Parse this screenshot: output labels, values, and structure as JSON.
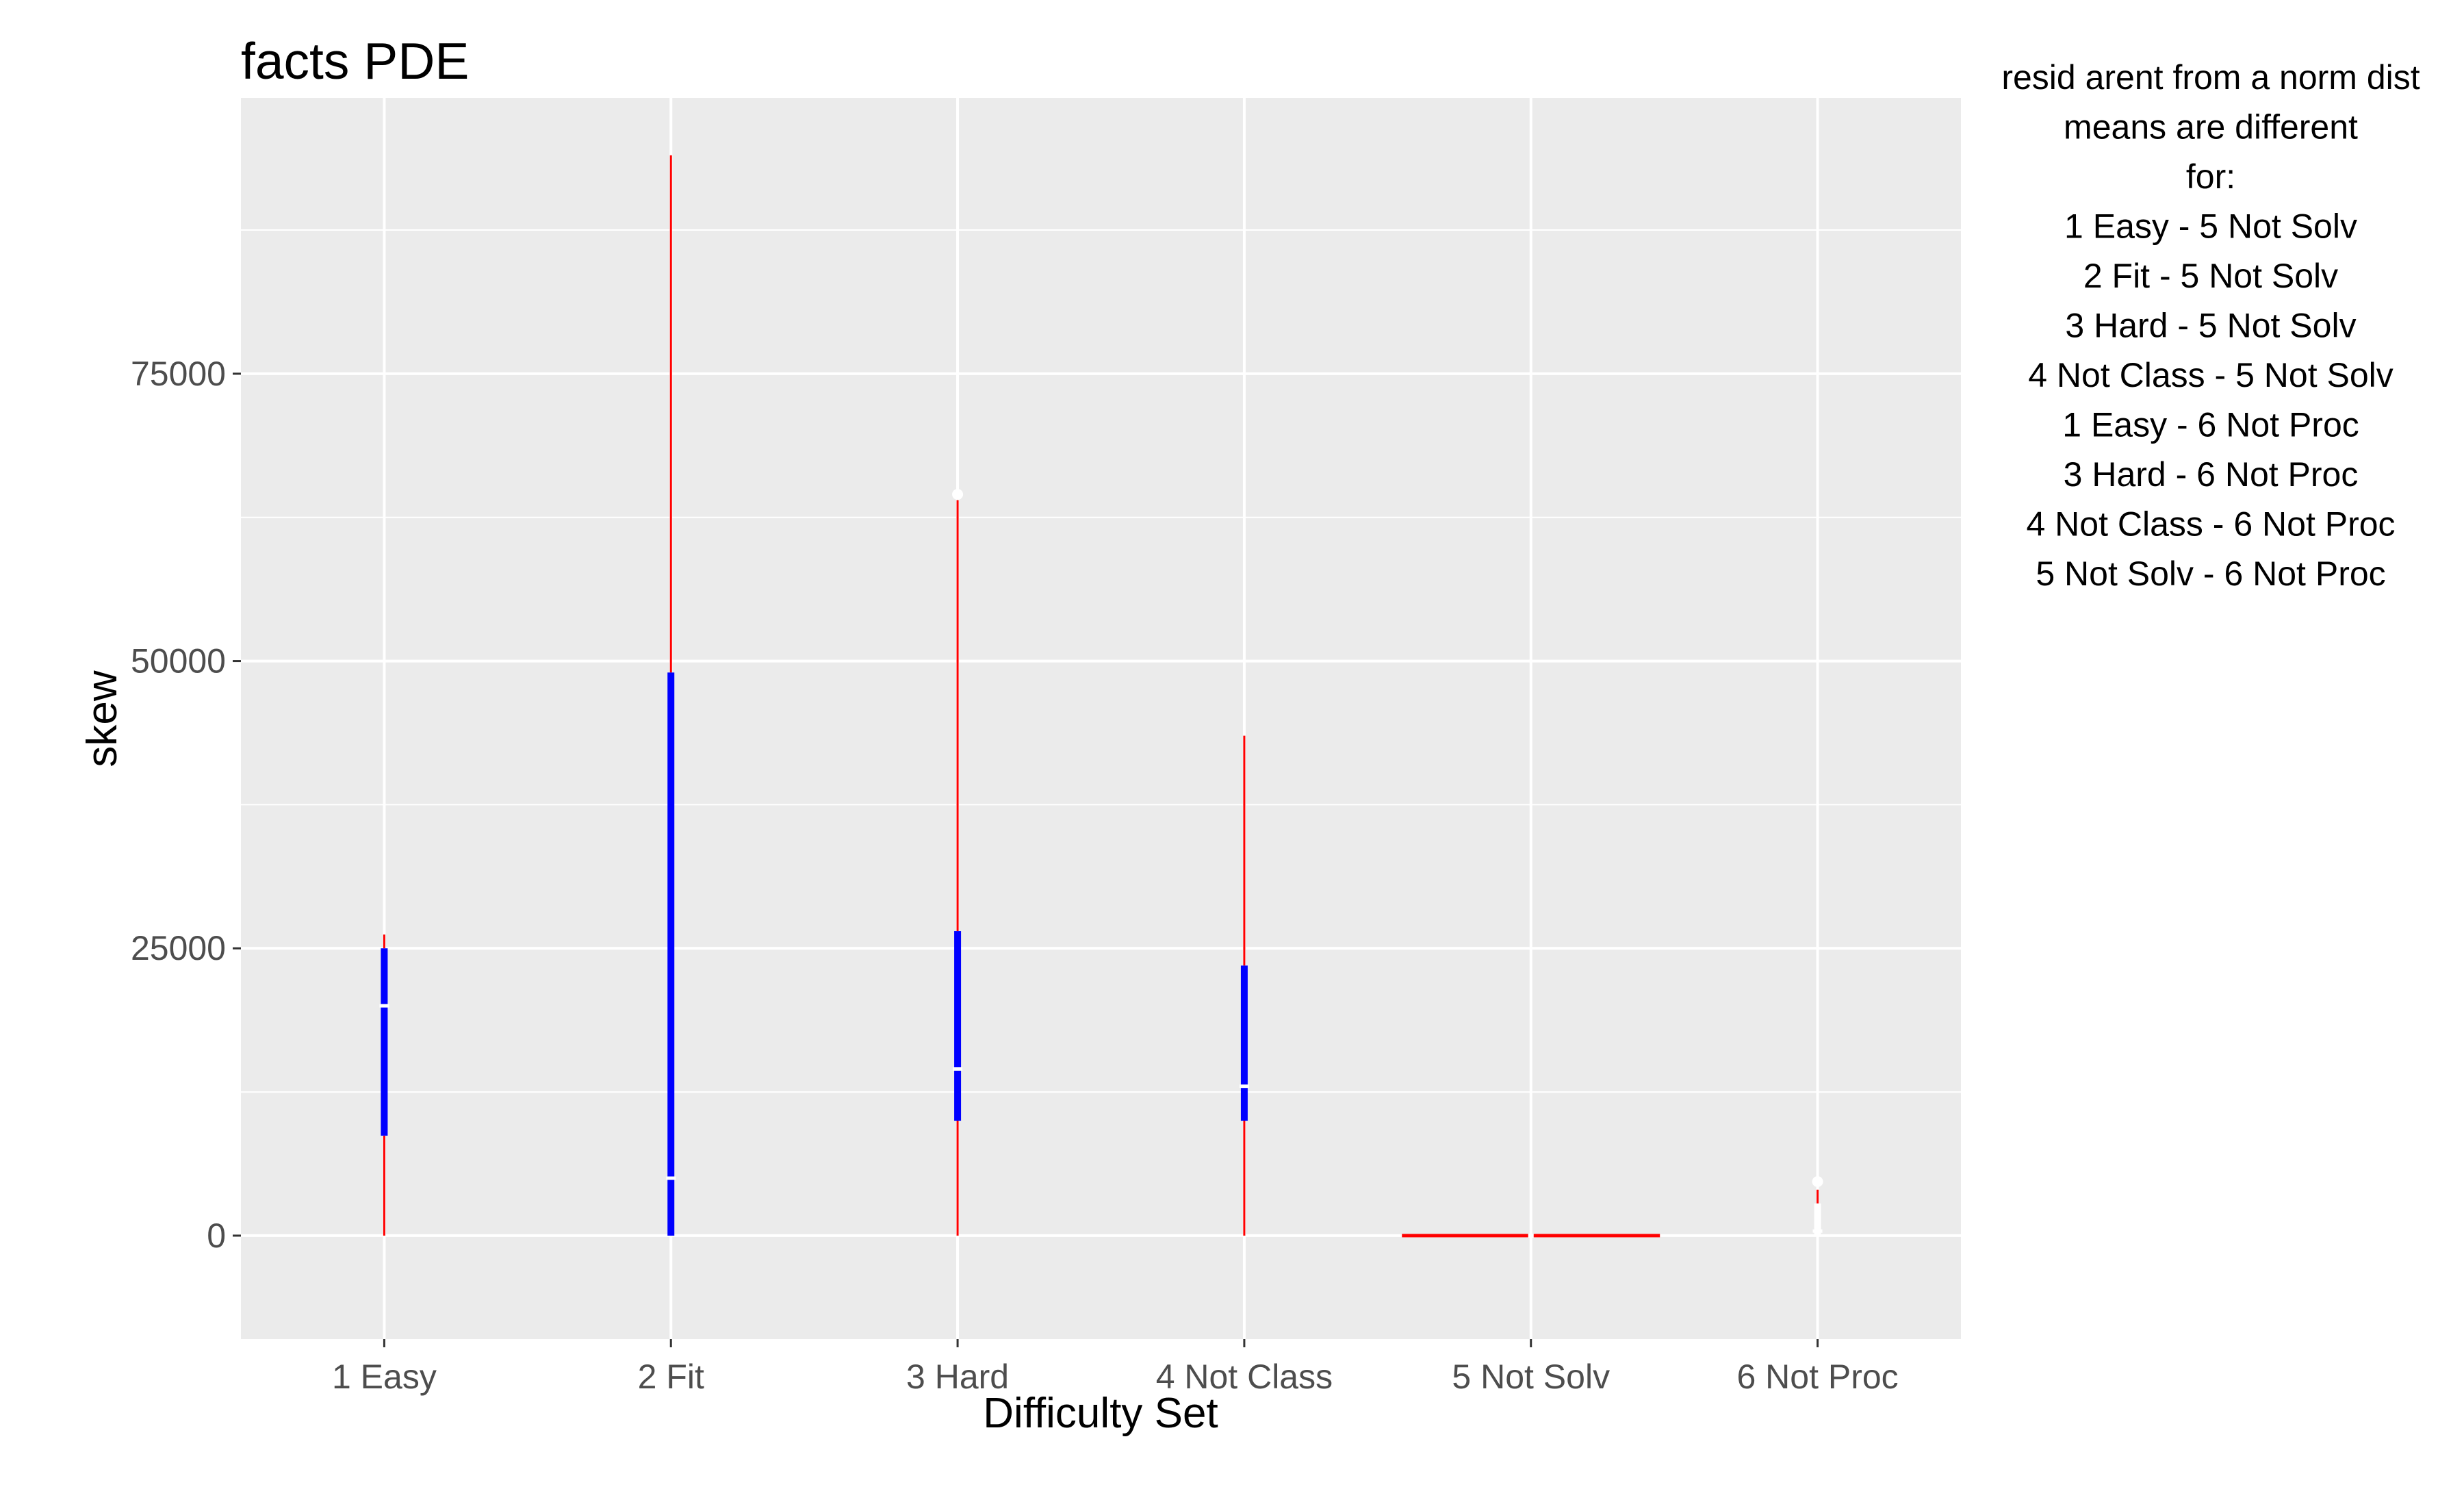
{
  "chart_data": {
    "type": "boxplot",
    "title": "facts PDE",
    "xlabel": "Difficulty Set",
    "ylabel": "skew",
    "ylim": [
      -9000,
      99000
    ],
    "yticks": [
      0,
      25000,
      50000,
      75000
    ],
    "categories": [
      "1 Easy",
      "2 Fit",
      "3 Hard",
      "4 Not Class",
      "5 Not Solv",
      "6 Not Proc"
    ],
    "boxes": [
      {
        "category": "1 Easy",
        "min": 0,
        "q1": 8700,
        "median": 20000,
        "q3": 25000,
        "max": 26200,
        "color": "#0000ff"
      },
      {
        "category": "2 Fit",
        "min": 0,
        "q1": 0,
        "median": 5000,
        "q3": 49000,
        "max": 94000,
        "color": "#0000ff"
      },
      {
        "category": "3 Hard",
        "min": 0,
        "q1": 10000,
        "median": 14500,
        "q3": 26500,
        "max": 64000,
        "color": "#0000ff"
      },
      {
        "category": "4 Not Class",
        "min": 0,
        "q1": 10000,
        "median": 13000,
        "q3": 23500,
        "max": 43500,
        "color": "#0000ff"
      },
      {
        "category": "5 Not Solv",
        "min": 0,
        "q1": 0,
        "median": 0,
        "q3": 0,
        "max": 0,
        "color": "#ff0000"
      },
      {
        "category": "6 Not Proc",
        "min": 0,
        "q1": 0,
        "median": 400,
        "q3": 2800,
        "max": 4000,
        "color": "#ffffff"
      }
    ],
    "mean_points": [
      {
        "category": "3 Hard",
        "value": 64500
      },
      {
        "category": "6 Not Proc",
        "value": 4700
      }
    ],
    "grid": true,
    "colors": {
      "panel": "#ebebeb",
      "grid": "#ffffff",
      "whisker": "#ff0000",
      "box": "#0000ff"
    }
  },
  "annotation": {
    "lines": [
      "resid arent from a norm dist",
      "means are different",
      "for:",
      "1 Easy - 5 Not Solv",
      "2 Fit - 5 Not Solv",
      "3 Hard - 5 Not Solv",
      "4 Not Class - 5 Not Solv",
      "1 Easy - 6 Not Proc",
      "3 Hard - 6 Not Proc",
      "4 Not Class - 6 Not Proc",
      "5 Not Solv - 6 Not Proc"
    ]
  }
}
